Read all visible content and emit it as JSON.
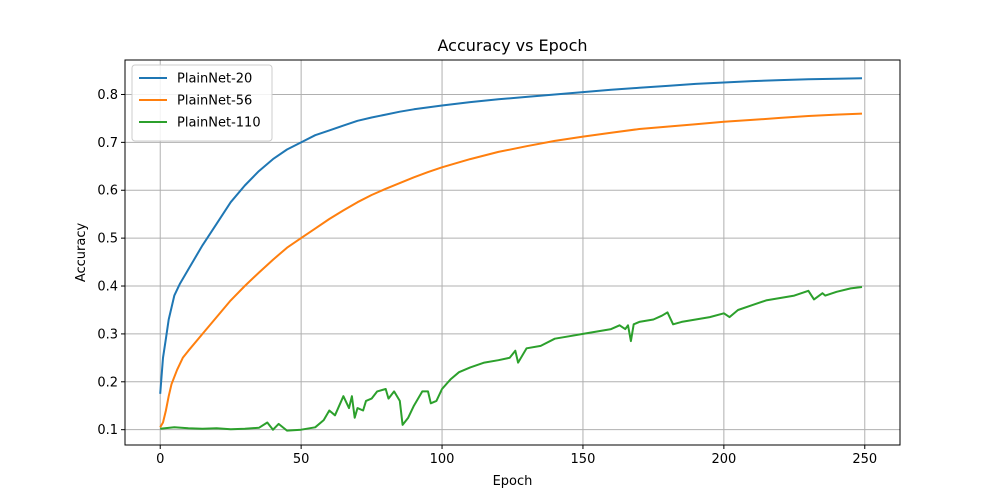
{
  "chart_data": {
    "type": "line",
    "title": "Accuracy vs Epoch",
    "xlabel": "Epoch",
    "ylabel": "Accuracy",
    "xlim": [
      -12.5,
      262.5
    ],
    "ylim": [
      0.068,
      0.872
    ],
    "xticks": [
      0,
      50,
      100,
      150,
      200,
      250
    ],
    "yticks": [
      0.1,
      0.2,
      0.3,
      0.4,
      0.5,
      0.6,
      0.7,
      0.8
    ],
    "grid": true,
    "legend_position": "top-left",
    "series": [
      {
        "name": "PlainNet-20",
        "color": "#1f77b4",
        "points": [
          [
            0,
            0.175
          ],
          [
            1,
            0.25
          ],
          [
            2,
            0.29
          ],
          [
            3,
            0.33
          ],
          [
            4,
            0.355
          ],
          [
            5,
            0.38
          ],
          [
            7,
            0.405
          ],
          [
            10,
            0.435
          ],
          [
            12,
            0.455
          ],
          [
            15,
            0.485
          ],
          [
            20,
            0.53
          ],
          [
            25,
            0.575
          ],
          [
            30,
            0.61
          ],
          [
            35,
            0.64
          ],
          [
            40,
            0.665
          ],
          [
            45,
            0.685
          ],
          [
            50,
            0.7
          ],
          [
            55,
            0.715
          ],
          [
            60,
            0.725
          ],
          [
            65,
            0.735
          ],
          [
            70,
            0.745
          ],
          [
            75,
            0.752
          ],
          [
            80,
            0.758
          ],
          [
            85,
            0.764
          ],
          [
            90,
            0.769
          ],
          [
            95,
            0.773
          ],
          [
            100,
            0.777
          ],
          [
            110,
            0.784
          ],
          [
            120,
            0.79
          ],
          [
            130,
            0.795
          ],
          [
            140,
            0.8
          ],
          [
            150,
            0.805
          ],
          [
            160,
            0.81
          ],
          [
            170,
            0.814
          ],
          [
            180,
            0.818
          ],
          [
            190,
            0.822
          ],
          [
            200,
            0.825
          ],
          [
            210,
            0.828
          ],
          [
            220,
            0.83
          ],
          [
            230,
            0.832
          ],
          [
            240,
            0.833
          ],
          [
            249,
            0.834
          ]
        ]
      },
      {
        "name": "PlainNet-56",
        "color": "#ff7f0e",
        "points": [
          [
            0,
            0.105
          ],
          [
            1,
            0.115
          ],
          [
            2,
            0.14
          ],
          [
            3,
            0.17
          ],
          [
            4,
            0.195
          ],
          [
            6,
            0.225
          ],
          [
            8,
            0.25
          ],
          [
            10,
            0.265
          ],
          [
            15,
            0.3
          ],
          [
            20,
            0.335
          ],
          [
            25,
            0.37
          ],
          [
            30,
            0.4
          ],
          [
            35,
            0.428
          ],
          [
            40,
            0.455
          ],
          [
            45,
            0.48
          ],
          [
            50,
            0.5
          ],
          [
            55,
            0.52
          ],
          [
            60,
            0.54
          ],
          [
            65,
            0.558
          ],
          [
            70,
            0.575
          ],
          [
            75,
            0.59
          ],
          [
            80,
            0.603
          ],
          [
            85,
            0.615
          ],
          [
            90,
            0.627
          ],
          [
            95,
            0.638
          ],
          [
            100,
            0.648
          ],
          [
            110,
            0.665
          ],
          [
            120,
            0.68
          ],
          [
            130,
            0.692
          ],
          [
            140,
            0.703
          ],
          [
            150,
            0.712
          ],
          [
            160,
            0.72
          ],
          [
            170,
            0.728
          ],
          [
            180,
            0.733
          ],
          [
            190,
            0.738
          ],
          [
            200,
            0.743
          ],
          [
            210,
            0.747
          ],
          [
            220,
            0.751
          ],
          [
            230,
            0.755
          ],
          [
            240,
            0.758
          ],
          [
            249,
            0.76
          ]
        ]
      },
      {
        "name": "PlainNet-110",
        "color": "#2ca02c",
        "points": [
          [
            0,
            0.102
          ],
          [
            5,
            0.105
          ],
          [
            10,
            0.103
          ],
          [
            15,
            0.102
          ],
          [
            20,
            0.103
          ],
          [
            25,
            0.101
          ],
          [
            30,
            0.102
          ],
          [
            35,
            0.104
          ],
          [
            38,
            0.115
          ],
          [
            40,
            0.1
          ],
          [
            42,
            0.112
          ],
          [
            45,
            0.098
          ],
          [
            50,
            0.1
          ],
          [
            55,
            0.105
          ],
          [
            58,
            0.12
          ],
          [
            60,
            0.14
          ],
          [
            62,
            0.13
          ],
          [
            65,
            0.17
          ],
          [
            67,
            0.145
          ],
          [
            68,
            0.17
          ],
          [
            69,
            0.125
          ],
          [
            70,
            0.145
          ],
          [
            72,
            0.14
          ],
          [
            73,
            0.16
          ],
          [
            75,
            0.165
          ],
          [
            77,
            0.18
          ],
          [
            80,
            0.185
          ],
          [
            81,
            0.165
          ],
          [
            83,
            0.18
          ],
          [
            85,
            0.16
          ],
          [
            86,
            0.11
          ],
          [
            88,
            0.125
          ],
          [
            90,
            0.15
          ],
          [
            93,
            0.18
          ],
          [
            95,
            0.18
          ],
          [
            96,
            0.155
          ],
          [
            98,
            0.16
          ],
          [
            100,
            0.185
          ],
          [
            103,
            0.205
          ],
          [
            106,
            0.22
          ],
          [
            110,
            0.23
          ],
          [
            115,
            0.24
          ],
          [
            120,
            0.245
          ],
          [
            124,
            0.25
          ],
          [
            126,
            0.265
          ],
          [
            127,
            0.24
          ],
          [
            130,
            0.27
          ],
          [
            135,
            0.275
          ],
          [
            140,
            0.29
          ],
          [
            145,
            0.295
          ],
          [
            150,
            0.3
          ],
          [
            155,
            0.305
          ],
          [
            160,
            0.31
          ],
          [
            163,
            0.318
          ],
          [
            165,
            0.31
          ],
          [
            166,
            0.318
          ],
          [
            167,
            0.285
          ],
          [
            168,
            0.32
          ],
          [
            170,
            0.325
          ],
          [
            175,
            0.33
          ],
          [
            178,
            0.338
          ],
          [
            180,
            0.345
          ],
          [
            182,
            0.32
          ],
          [
            185,
            0.325
          ],
          [
            190,
            0.33
          ],
          [
            195,
            0.335
          ],
          [
            200,
            0.343
          ],
          [
            202,
            0.335
          ],
          [
            205,
            0.35
          ],
          [
            210,
            0.36
          ],
          [
            215,
            0.37
          ],
          [
            220,
            0.375
          ],
          [
            225,
            0.38
          ],
          [
            230,
            0.39
          ],
          [
            232,
            0.372
          ],
          [
            235,
            0.385
          ],
          [
            236,
            0.38
          ],
          [
            240,
            0.388
          ],
          [
            245,
            0.395
          ],
          [
            249,
            0.398
          ]
        ]
      }
    ]
  }
}
